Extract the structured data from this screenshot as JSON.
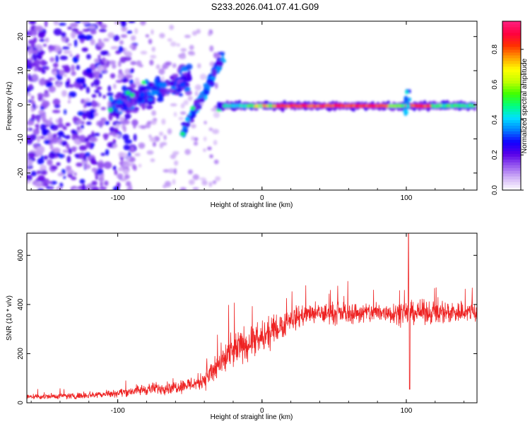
{
  "figure": {
    "title": "S233.2026.041.07.41.G09"
  },
  "chart_data": [
    {
      "type": "heatmap",
      "id": "spectrogram",
      "xlabel": "Height of straight line (km)",
      "ylabel": "Frequency (Hz)",
      "xlim": [
        -163,
        149
      ],
      "ylim": [
        -25,
        24.5
      ],
      "xticks": [
        -100,
        0,
        100
      ],
      "yticks": [
        -20,
        -10,
        0,
        10,
        20
      ],
      "colorbar": {
        "label": "Normalized spectral amplitude",
        "range": [
          0,
          0.96
        ],
        "ticks": [
          0.0,
          0.2,
          0.4,
          0.6,
          0.8
        ],
        "tick_labels": [
          "0.0",
          "0.2",
          "0.4",
          "0.6",
          "0.8"
        ],
        "colormap": [
          "#ffffff",
          "#d4b7f7",
          "#9a5ef0",
          "#5a00e8",
          "#1100ff",
          "#0080ff",
          "#00e0ff",
          "#00ff80",
          "#40ff00",
          "#c0ff00",
          "#ffff00",
          "#ffa000",
          "#ff3000",
          "#ff0040",
          "#ff2080"
        ]
      },
      "features": [
        {
          "name": "strong carrier line",
          "x_range": [
            -25,
            147
          ],
          "frequency": -0.3,
          "amplitude": 0.9
        },
        {
          "name": "scattered noise",
          "x_range": [
            -163,
            -100
          ],
          "frequency_range": [
            -25,
            24.5
          ],
          "amplitude": 0.25
        },
        {
          "name": "rising diagonal streak",
          "x_range": [
            -105,
            -28
          ],
          "frequency_range": [
            -10,
            17
          ],
          "amplitude": 0.3
        }
      ]
    },
    {
      "type": "line",
      "id": "snr",
      "xlabel": "Height of straight line (km)",
      "ylabel": "SNR (10 * v/v)",
      "xlim": [
        -163,
        149
      ],
      "ylim": [
        0,
        690
      ],
      "xticks": [
        -100,
        0,
        100
      ],
      "yticks": [
        0,
        200,
        400,
        600
      ],
      "color": "#ee2222",
      "envelope": [
        {
          "x": -163,
          "mean": 25,
          "noise": 10
        },
        {
          "x": -130,
          "mean": 28,
          "noise": 12
        },
        {
          "x": -100,
          "mean": 40,
          "noise": 15
        },
        {
          "x": -80,
          "mean": 55,
          "noise": 22
        },
        {
          "x": -60,
          "mean": 65,
          "noise": 25
        },
        {
          "x": -45,
          "mean": 80,
          "noise": 30
        },
        {
          "x": -35,
          "mean": 120,
          "noise": 50
        },
        {
          "x": -25,
          "mean": 180,
          "noise": 65
        },
        {
          "x": -15,
          "mean": 230,
          "noise": 65
        },
        {
          "x": 0,
          "mean": 260,
          "noise": 60
        },
        {
          "x": 10,
          "mean": 300,
          "noise": 55
        },
        {
          "x": 20,
          "mean": 340,
          "noise": 45
        },
        {
          "x": 30,
          "mean": 360,
          "noise": 40
        },
        {
          "x": 60,
          "mean": 365,
          "noise": 40
        },
        {
          "x": 100,
          "mean": 368,
          "noise": 42
        },
        {
          "x": 149,
          "mean": 370,
          "noise": 45
        }
      ],
      "spikes": [
        {
          "x": 101.5,
          "value": 690
        },
        {
          "x": 102.3,
          "value": 55
        }
      ]
    }
  ]
}
